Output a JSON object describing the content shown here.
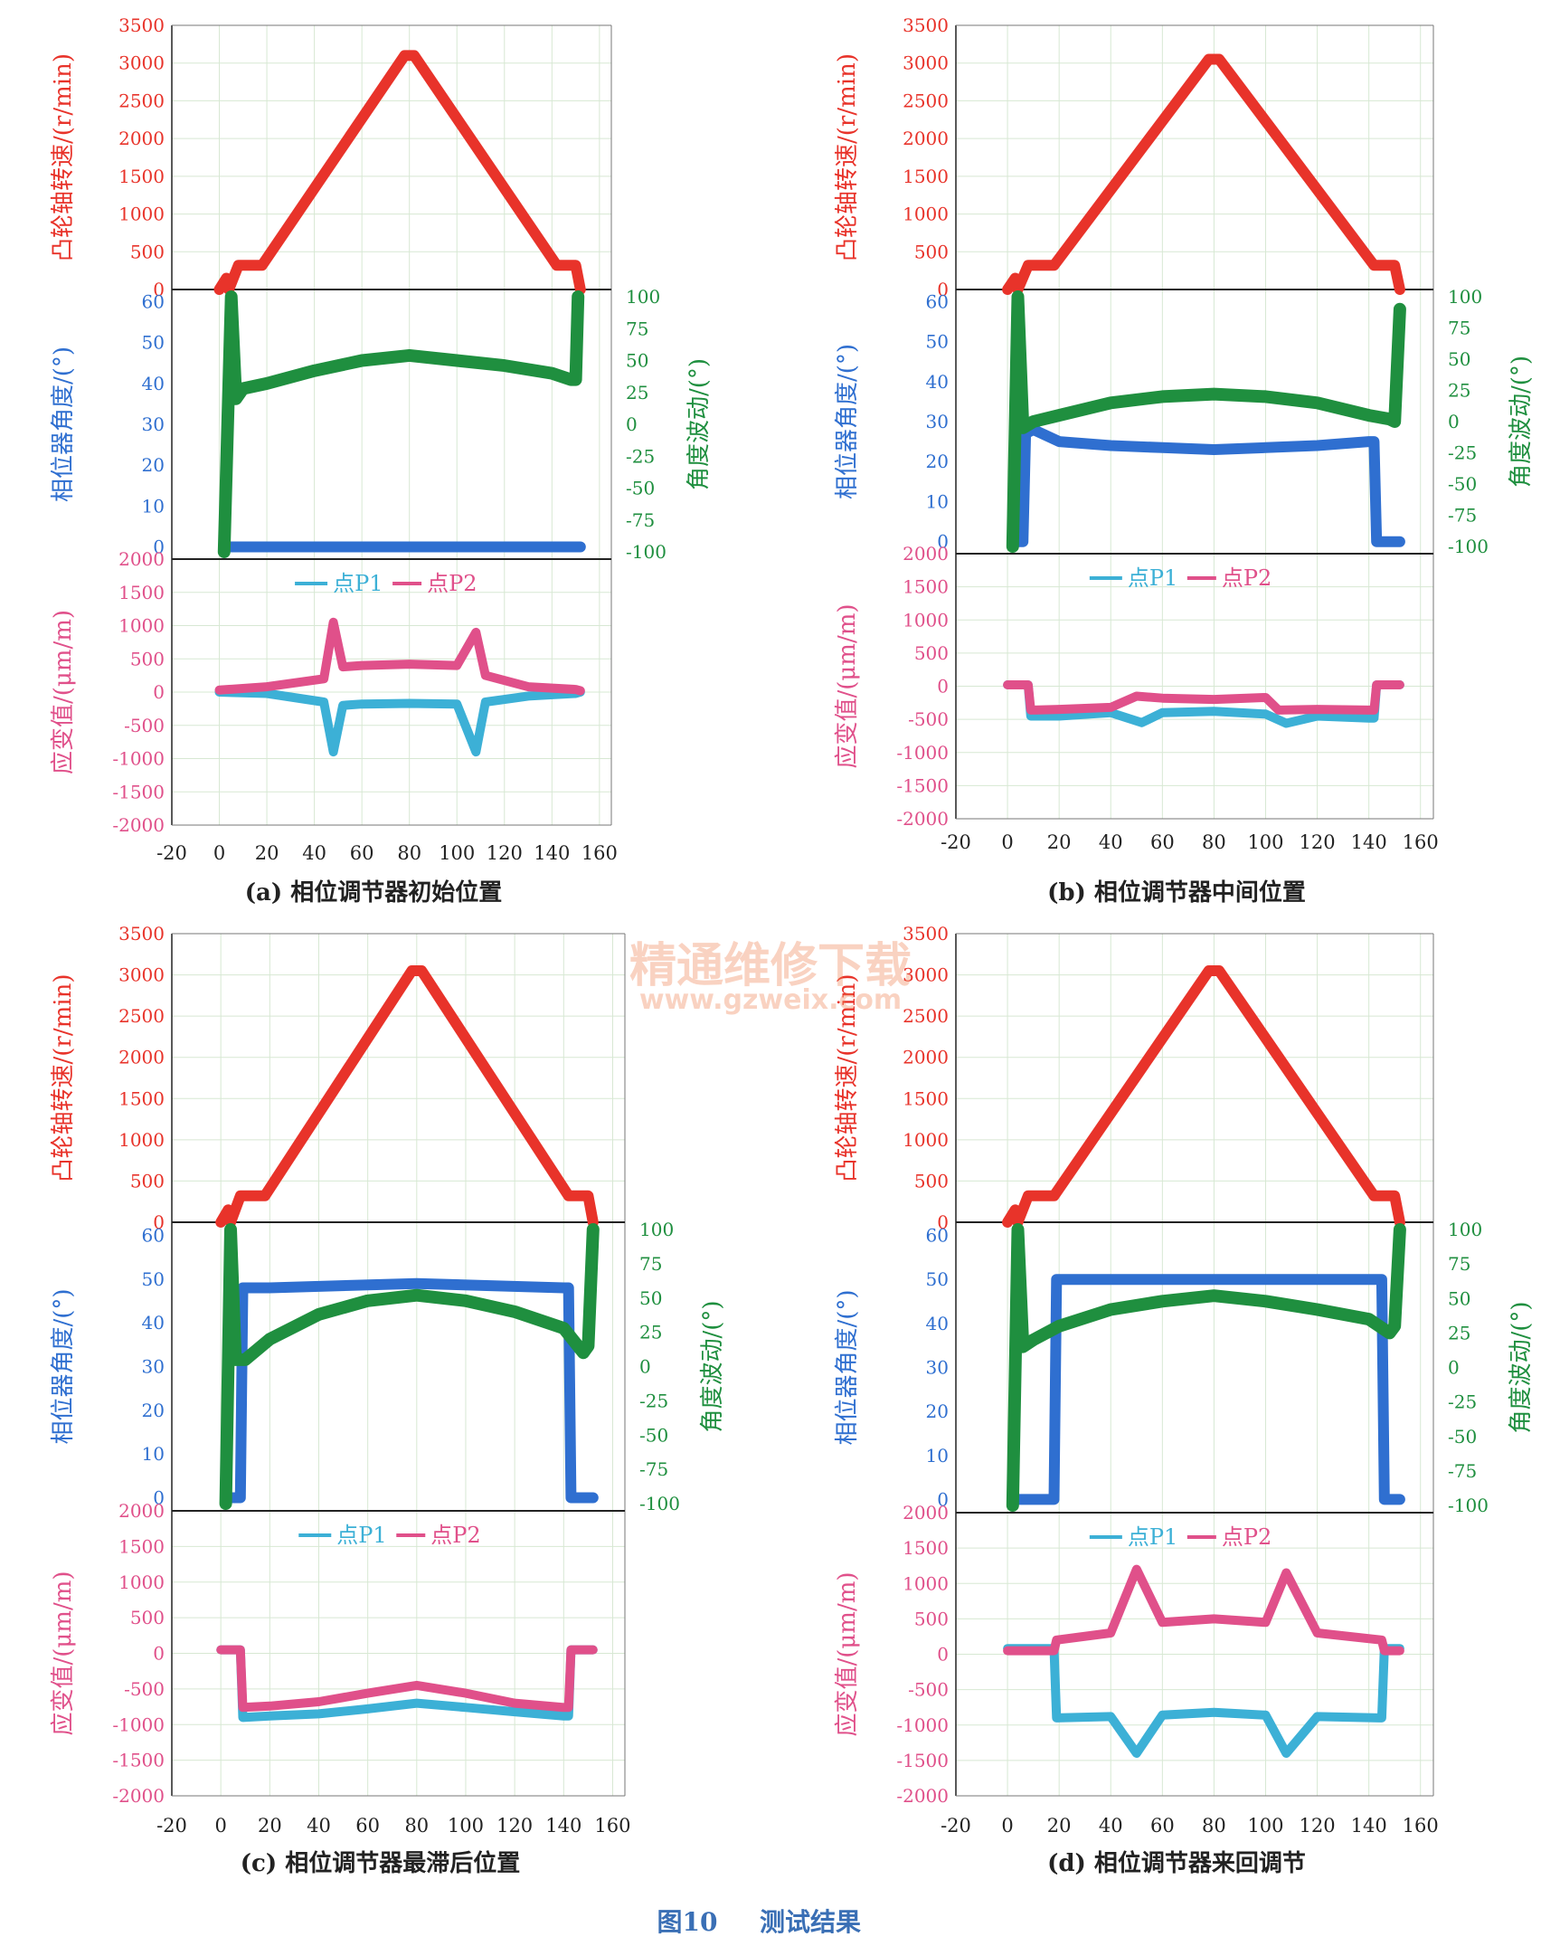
{
  "figure_caption": {
    "number": "图10",
    "title": "测试结果"
  },
  "watermark": {
    "line1": "精通维修下载",
    "line2": "www.gzweix.com"
  },
  "colors": {
    "speed": "#e8332a",
    "phase_angle": "#2f6fd0",
    "angle_fluct": "#1f8f3f",
    "p1": "#3cb0d6",
    "p2": "#e0508a",
    "grid": "#d7e8d3",
    "axis": "#222222"
  },
  "legend": {
    "p1": "点P1",
    "p2": "点P2"
  },
  "axes": {
    "speed": {
      "label": "凸轮轴转速/(r/min)",
      "ticks": [
        0,
        500,
        1000,
        1500,
        2000,
        2500,
        3000,
        3500
      ],
      "range": [
        0,
        3500
      ]
    },
    "phase": {
      "label": "相位器角度/(°)",
      "ticks": [
        0,
        10,
        20,
        30,
        40,
        50,
        60
      ],
      "range": [
        -3,
        63
      ]
    },
    "fluct": {
      "label": "角度波动/(°)",
      "ticks": [
        -100,
        -75,
        -50,
        -25,
        0,
        25,
        50,
        75,
        100
      ],
      "range": [
        -100,
        100
      ]
    },
    "strain": {
      "label": "应变值/(μm/m)",
      "ticks": [
        -2000,
        -1500,
        -1000,
        -500,
        0,
        500,
        1000,
        1500,
        2000
      ],
      "range": [
        -2000,
        2000
      ]
    },
    "x": {
      "ticks": [
        -20,
        0,
        20,
        40,
        60,
        80,
        100,
        120,
        140,
        160
      ],
      "range": [
        -20,
        165
      ]
    }
  },
  "chart_data": [
    {
      "type": "line",
      "label": "(a)",
      "caption": "相位调节器初始位置",
      "speed": {
        "x": [
          0,
          3,
          4,
          8,
          18,
          78,
          82,
          142,
          150,
          152
        ],
        "y": [
          0,
          150,
          0,
          320,
          320,
          3100,
          3100,
          320,
          320,
          0
        ]
      },
      "phase_angle": {
        "x": [
          2,
          152
        ],
        "y": [
          0,
          0
        ]
      },
      "angle_fluct": {
        "x": [
          2,
          5,
          7,
          10,
          20,
          40,
          60,
          80,
          100,
          120,
          140,
          148,
          150,
          151
        ],
        "y": [
          -100,
          100,
          20,
          28,
          32,
          42,
          50,
          54,
          50,
          46,
          40,
          35,
          35,
          100
        ]
      },
      "strain_p1": {
        "x": [
          0,
          20,
          44,
          48,
          52,
          60,
          80,
          100,
          108,
          112,
          130,
          150,
          152
        ],
        "y": [
          0,
          -20,
          -150,
          -900,
          -200,
          -180,
          -170,
          -180,
          -900,
          -150,
          -60,
          -20,
          0
        ]
      },
      "strain_p2": {
        "x": [
          0,
          20,
          44,
          48,
          52,
          60,
          80,
          100,
          108,
          112,
          130,
          150,
          152
        ],
        "y": [
          30,
          80,
          200,
          1050,
          380,
          400,
          420,
          400,
          900,
          250,
          80,
          40,
          20
        ]
      }
    },
    {
      "type": "line",
      "label": "(b)",
      "caption": "相位调节器中间位置",
      "speed": {
        "x": [
          0,
          3,
          4,
          8,
          18,
          78,
          82,
          142,
          150,
          152
        ],
        "y": [
          0,
          150,
          0,
          320,
          320,
          3050,
          3050,
          320,
          320,
          0
        ]
      },
      "phase_angle": {
        "x": [
          2,
          6,
          7,
          10,
          20,
          40,
          60,
          80,
          100,
          120,
          140,
          142,
          143,
          152
        ],
        "y": [
          0,
          0,
          27,
          28,
          25,
          24,
          23.5,
          23,
          23.5,
          24,
          25,
          25,
          0,
          0
        ]
      },
      "angle_fluct": {
        "x": [
          2,
          4,
          6,
          10,
          20,
          40,
          60,
          80,
          100,
          120,
          140,
          148,
          150,
          152
        ],
        "y": [
          -100,
          100,
          -5,
          0,
          5,
          15,
          20,
          22,
          20,
          15,
          5,
          2,
          0,
          90
        ]
      },
      "strain_p1": {
        "x": [
          0,
          8,
          9,
          20,
          40,
          52,
          60,
          80,
          100,
          108,
          120,
          140,
          142,
          143,
          152
        ],
        "y": [
          20,
          20,
          -450,
          -450,
          -400,
          -550,
          -400,
          -380,
          -420,
          -560,
          -450,
          -480,
          -480,
          20,
          20
        ]
      },
      "strain_p2": {
        "x": [
          0,
          8,
          9,
          20,
          40,
          50,
          60,
          80,
          100,
          105,
          120,
          140,
          142,
          143,
          152
        ],
        "y": [
          20,
          20,
          -360,
          -350,
          -320,
          -150,
          -180,
          -200,
          -170,
          -360,
          -350,
          -360,
          -360,
          20,
          20
        ]
      }
    },
    {
      "type": "line",
      "label": "(c)",
      "caption": "相位调节器最滞后位置",
      "speed": {
        "x": [
          0,
          3,
          4,
          8,
          18,
          78,
          82,
          142,
          150,
          152
        ],
        "y": [
          0,
          150,
          0,
          320,
          320,
          3050,
          3050,
          320,
          320,
          0
        ]
      },
      "phase_angle": {
        "x": [
          2,
          8,
          9,
          20,
          80,
          140,
          142,
          143,
          152
        ],
        "y": [
          0,
          0,
          48,
          48,
          49,
          48,
          48,
          0,
          0
        ]
      },
      "angle_fluct": {
        "x": [
          2,
          4,
          6,
          10,
          20,
          40,
          60,
          80,
          100,
          120,
          140,
          148,
          150,
          152
        ],
        "y": [
          -100,
          100,
          5,
          5,
          20,
          38,
          48,
          52,
          48,
          40,
          28,
          10,
          15,
          100
        ]
      },
      "strain_p1": {
        "x": [
          0,
          8,
          9,
          20,
          40,
          60,
          80,
          100,
          120,
          140,
          142,
          143,
          152
        ],
        "y": [
          50,
          50,
          -900,
          -880,
          -850,
          -780,
          -700,
          -760,
          -820,
          -880,
          -880,
          50,
          50
        ]
      },
      "strain_p2": {
        "x": [
          0,
          8,
          9,
          20,
          40,
          60,
          80,
          100,
          120,
          140,
          142,
          143,
          152
        ],
        "y": [
          50,
          50,
          -760,
          -740,
          -680,
          -560,
          -450,
          -560,
          -700,
          -760,
          -760,
          50,
          50
        ]
      }
    },
    {
      "type": "line",
      "label": "(d)",
      "caption": "相位调节器来回调节",
      "speed": {
        "x": [
          0,
          3,
          4,
          8,
          18,
          78,
          82,
          142,
          150,
          152
        ],
        "y": [
          0,
          150,
          0,
          320,
          320,
          3050,
          3050,
          320,
          320,
          0
        ]
      },
      "phase_angle": {
        "x": [
          2,
          18,
          19,
          30,
          60,
          80,
          100,
          130,
          145,
          146,
          152
        ],
        "y": [
          0,
          0,
          50,
          50,
          50,
          50,
          50,
          50,
          50,
          0,
          0
        ]
      },
      "angle_fluct": {
        "x": [
          2,
          4,
          6,
          10,
          20,
          40,
          60,
          80,
          100,
          120,
          140,
          148,
          150,
          152
        ],
        "y": [
          -100,
          100,
          15,
          20,
          30,
          42,
          48,
          52,
          48,
          42,
          35,
          25,
          30,
          100
        ]
      },
      "strain_p1": {
        "x": [
          0,
          18,
          19,
          40,
          50,
          60,
          80,
          100,
          108,
          120,
          145,
          146,
          152
        ],
        "y": [
          80,
          80,
          -900,
          -880,
          -1400,
          -860,
          -820,
          -860,
          -1400,
          -880,
          -900,
          80,
          80
        ]
      },
      "strain_p2": {
        "x": [
          0,
          18,
          19,
          40,
          50,
          60,
          80,
          100,
          108,
          120,
          145,
          146,
          152
        ],
        "y": [
          50,
          50,
          200,
          300,
          1200,
          450,
          500,
          450,
          1150,
          300,
          200,
          50,
          50
        ]
      }
    }
  ]
}
